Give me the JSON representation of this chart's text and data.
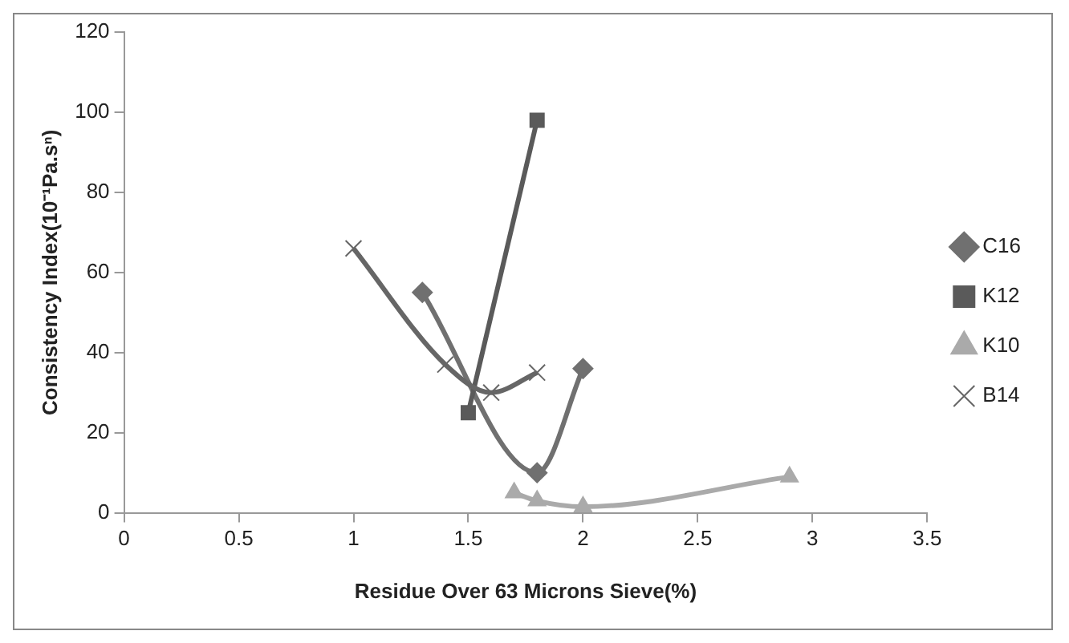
{
  "chart_data": {
    "type": "line",
    "xlabel": "Residue Over 63 Microns Sieve(%)",
    "ylabel": "Consistency Index(10⁻¹Pa.sⁿ)",
    "xlim": [
      0,
      3.5
    ],
    "xticks": [
      0,
      0.5,
      1,
      1.5,
      2,
      2.5,
      3,
      3.5
    ],
    "ylim": [
      0,
      120
    ],
    "yticks": [
      0,
      20,
      40,
      60,
      80,
      100,
      120
    ],
    "grid": false,
    "legend": "right",
    "series": [
      {
        "name": "C16",
        "color": "#707070",
        "marker": "diamond",
        "x": [
          1.3,
          1.8,
          2.0
        ],
        "values": [
          55,
          10,
          36
        ]
      },
      {
        "name": "K12",
        "color": "#5a5a5a",
        "marker": "square",
        "x": [
          1.5,
          1.8
        ],
        "values": [
          25,
          98
        ]
      },
      {
        "name": "K10",
        "color": "#aaaaaa",
        "marker": "triangle",
        "x": [
          1.7,
          1.8,
          2.0,
          2.9
        ],
        "values": [
          5,
          3,
          1.5,
          9
        ]
      },
      {
        "name": "B14",
        "color": "#666666",
        "marker": "cross",
        "x": [
          1.0,
          1.4,
          1.6,
          1.8
        ],
        "values": [
          66,
          37,
          30,
          35
        ]
      }
    ]
  }
}
